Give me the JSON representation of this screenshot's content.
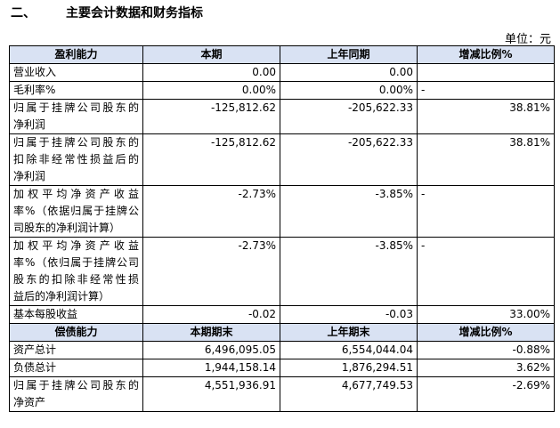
{
  "heading": {
    "number": "二、",
    "title": "主要会计数据和财务指标"
  },
  "unit": "单位：元",
  "profit": {
    "headers": [
      "盈利能力",
      "本期",
      "上年同期",
      "增减比例%"
    ],
    "rows": [
      {
        "item": [
          "营业收入"
        ],
        "current": "0.00",
        "prior": "0.00",
        "change": ""
      },
      {
        "item": [
          "毛利率%"
        ],
        "current": "0.00%",
        "prior": "0.00%",
        "change": "-"
      },
      {
        "item": [
          "归属于挂牌公司股东的",
          "净利润"
        ],
        "current": "-125,812.62",
        "prior": "-205,622.33",
        "change": "38.81%"
      },
      {
        "item": [
          "归属于挂牌公司股东的",
          "扣除非经常性损益后的",
          "净利润"
        ],
        "current": "-125,812.62",
        "prior": "-205,622.33",
        "change": "38.81%"
      },
      {
        "item": [
          "加权平均净资产收益",
          "率%（依据归属于挂牌公",
          "司股东的净利润计算）"
        ],
        "current": "-2.73%",
        "prior": "-3.85%",
        "change": "-"
      },
      {
        "item": [
          "加权平均净资产收益",
          "率%（依归属于挂牌公司",
          "股东的扣除非经常性损",
          "益后的净利润计算）"
        ],
        "current": "-2.73%",
        "prior": "-3.85%",
        "change": "-"
      },
      {
        "item": [
          "基本每股收益"
        ],
        "current": "-0.02",
        "prior": "-0.03",
        "change": "33.00%"
      }
    ]
  },
  "solvency": {
    "headers": [
      "偿债能力",
      "本期期末",
      "上年期末",
      "增减比例%"
    ],
    "rows": [
      {
        "item": [
          "资产总计"
        ],
        "current": "6,496,095.05",
        "prior": "6,554,044.04",
        "change": "-0.88%"
      },
      {
        "item": [
          "负债总计"
        ],
        "current": "1,944,158.14",
        "prior": "1,876,294.51",
        "change": "3.62%"
      },
      {
        "item": [
          "归属于挂牌公司股东的",
          "净资产"
        ],
        "current": "4,551,936.91",
        "prior": "4,677,749.53",
        "change": "-2.69%"
      }
    ]
  }
}
